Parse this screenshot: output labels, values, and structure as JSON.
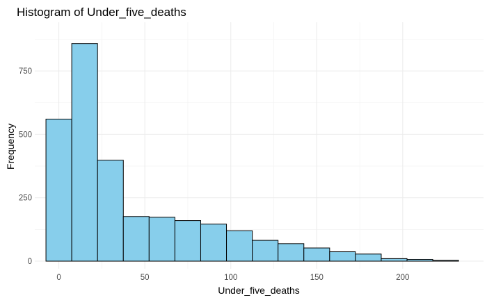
{
  "chart_data": {
    "type": "bar",
    "title": "Histogram of Under_five_deaths",
    "xlabel": "Under_five_deaths",
    "ylabel": "Frequency",
    "bin_edges": [
      -7.5,
      7.5,
      22.5,
      37.5,
      52.5,
      67.5,
      82.5,
      97.5,
      112.5,
      127.5,
      142.5,
      157.5,
      172.5,
      187.5,
      202.5,
      217.5,
      232.5
    ],
    "values": [
      560,
      858,
      398,
      176,
      173,
      160,
      146,
      120,
      82,
      69,
      52,
      37,
      28,
      10,
      7,
      3
    ],
    "xlim": [
      -14,
      247
    ],
    "ylim": [
      -30,
      942
    ],
    "x_ticks": [
      0,
      50,
      100,
      150,
      200
    ],
    "x_tick_labels": [
      "0",
      "50",
      "100",
      "150",
      "200"
    ],
    "y_ticks": [
      0,
      250,
      500,
      750
    ],
    "y_tick_labels": [
      "0",
      "250",
      "500",
      "750"
    ],
    "grid": true,
    "legend": "none",
    "colors": {
      "bar_fill": "#87CEEB",
      "bar_stroke": "#000000",
      "grid_major": "#ebebeb",
      "grid_minor": "#f4f4f4",
      "tick_text": "#4d4d4d"
    }
  }
}
